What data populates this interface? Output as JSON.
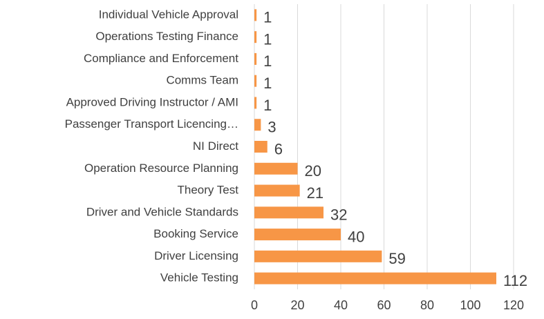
{
  "chart_data": {
    "type": "barh",
    "categories": [
      "Individual Vehicle Approval",
      "Operations Testing Finance",
      "Compliance and Enforcement",
      "Comms Team",
      "Approved Driving Instructor / AMI",
      "Passenger Transport Licencing…",
      "NI Direct",
      "Operation Resource Planning",
      "Theory Test",
      "Driver and Vehicle Standards",
      "Booking Service",
      "Driver Licensing",
      "Vehicle Testing"
    ],
    "values": [
      1,
      1,
      1,
      1,
      1,
      3,
      6,
      20,
      21,
      32,
      40,
      59,
      112
    ],
    "color": "#f79646",
    "xlim": [
      0,
      120
    ],
    "xticks": [
      0,
      20,
      40,
      60,
      80,
      100,
      120
    ],
    "grid": true
  }
}
